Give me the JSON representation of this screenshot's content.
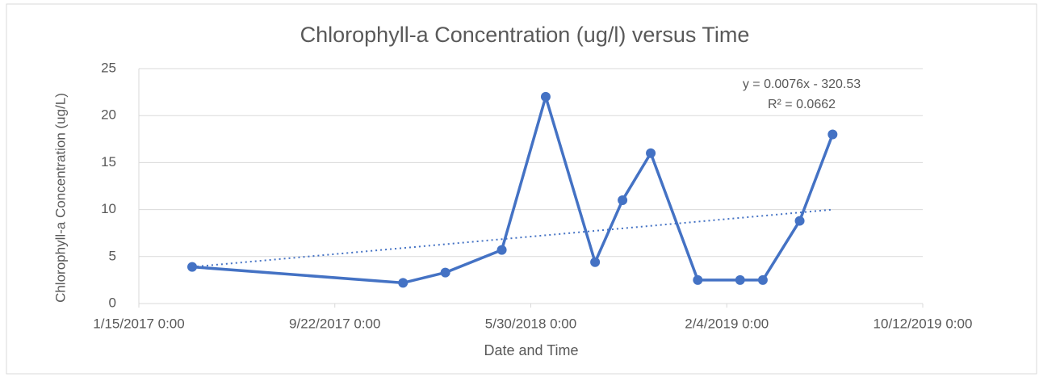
{
  "chart_data": {
    "type": "scatter-line",
    "title": "Chlorophyll-a Concentration (ug/l) versus Time",
    "x_label": "Date and Time",
    "y_label": "Chlorophyll-a Concentration (ug/L)",
    "x": [
      42818,
      43087,
      43141,
      43213,
      43269,
      43332,
      43367,
      43403,
      43463,
      43517,
      43546,
      43593,
      43635
    ],
    "series": [
      {
        "name": "Chlorophyll-a",
        "color": "#4472c4",
        "values": [
          3.9,
          2.2,
          3.3,
          5.7,
          22,
          4.4,
          11,
          16,
          2.5,
          2.5,
          2.5,
          8.8,
          18
        ]
      }
    ],
    "trendline": {
      "x": [
        42818,
        43635
      ],
      "values": [
        3.9,
        10.0
      ],
      "color": "#4472c4",
      "equation": "y = 0.0076x - 320.53",
      "r_squared": "R² = 0.0662"
    },
    "xlim": [
      42750,
      43750
    ],
    "xticks": [
      {
        "value": 42750,
        "label": "1/15/2017 0:00"
      },
      {
        "value": 43000,
        "label": "9/22/2017 0:00"
      },
      {
        "value": 43250,
        "label": "5/30/2018 0:00"
      },
      {
        "value": 43500,
        "label": "2/4/2019 0:00"
      },
      {
        "value": 43750,
        "label": "10/12/2019 0:00"
      }
    ],
    "ylim": [
      0,
      25
    ],
    "yticks": [
      0,
      5,
      10,
      15,
      20,
      25
    ],
    "grid": true
  }
}
